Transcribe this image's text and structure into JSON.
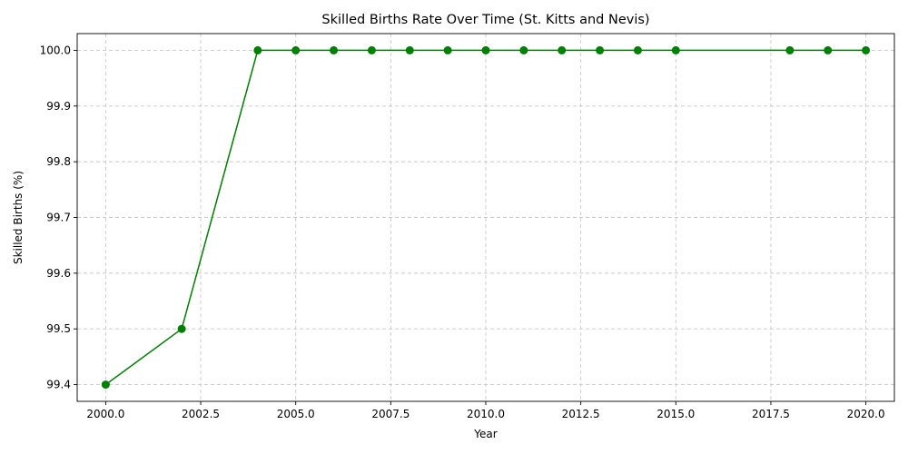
{
  "chart_data": {
    "type": "line",
    "title": "Skilled Births Rate Over Time (St. Kitts and Nevis)",
    "xlabel": "Year",
    "ylabel": "Skilled Births (%)",
    "xlim": [
      1999.25,
      2020.75
    ],
    "ylim": [
      99.37,
      100.03
    ],
    "xticks": [
      2000.0,
      2002.5,
      2005.0,
      2007.5,
      2010.0,
      2012.5,
      2015.0,
      2017.5,
      2020.0
    ],
    "xtick_labels": [
      "2000.0",
      "2002.5",
      "2005.0",
      "2007.5",
      "2010.0",
      "2012.5",
      "2015.0",
      "2017.5",
      "2020.0"
    ],
    "yticks": [
      99.4,
      99.5,
      99.6,
      99.7,
      99.8,
      99.9,
      100.0
    ],
    "ytick_labels": [
      "99.4",
      "99.5",
      "99.6",
      "99.7",
      "99.8",
      "99.9",
      "100.0"
    ],
    "grid": true,
    "series": [
      {
        "color": "#008000",
        "marker": "circle",
        "x": [
          2000,
          2002,
          2004,
          2005,
          2006,
          2007,
          2008,
          2009,
          2010,
          2011,
          2012,
          2013,
          2014,
          2015,
          2018,
          2019,
          2020
        ],
        "y": [
          99.4,
          99.5,
          100.0,
          100.0,
          100.0,
          100.0,
          100.0,
          100.0,
          100.0,
          100.0,
          100.0,
          100.0,
          100.0,
          100.0,
          100.0,
          100.0,
          100.0
        ]
      }
    ]
  }
}
